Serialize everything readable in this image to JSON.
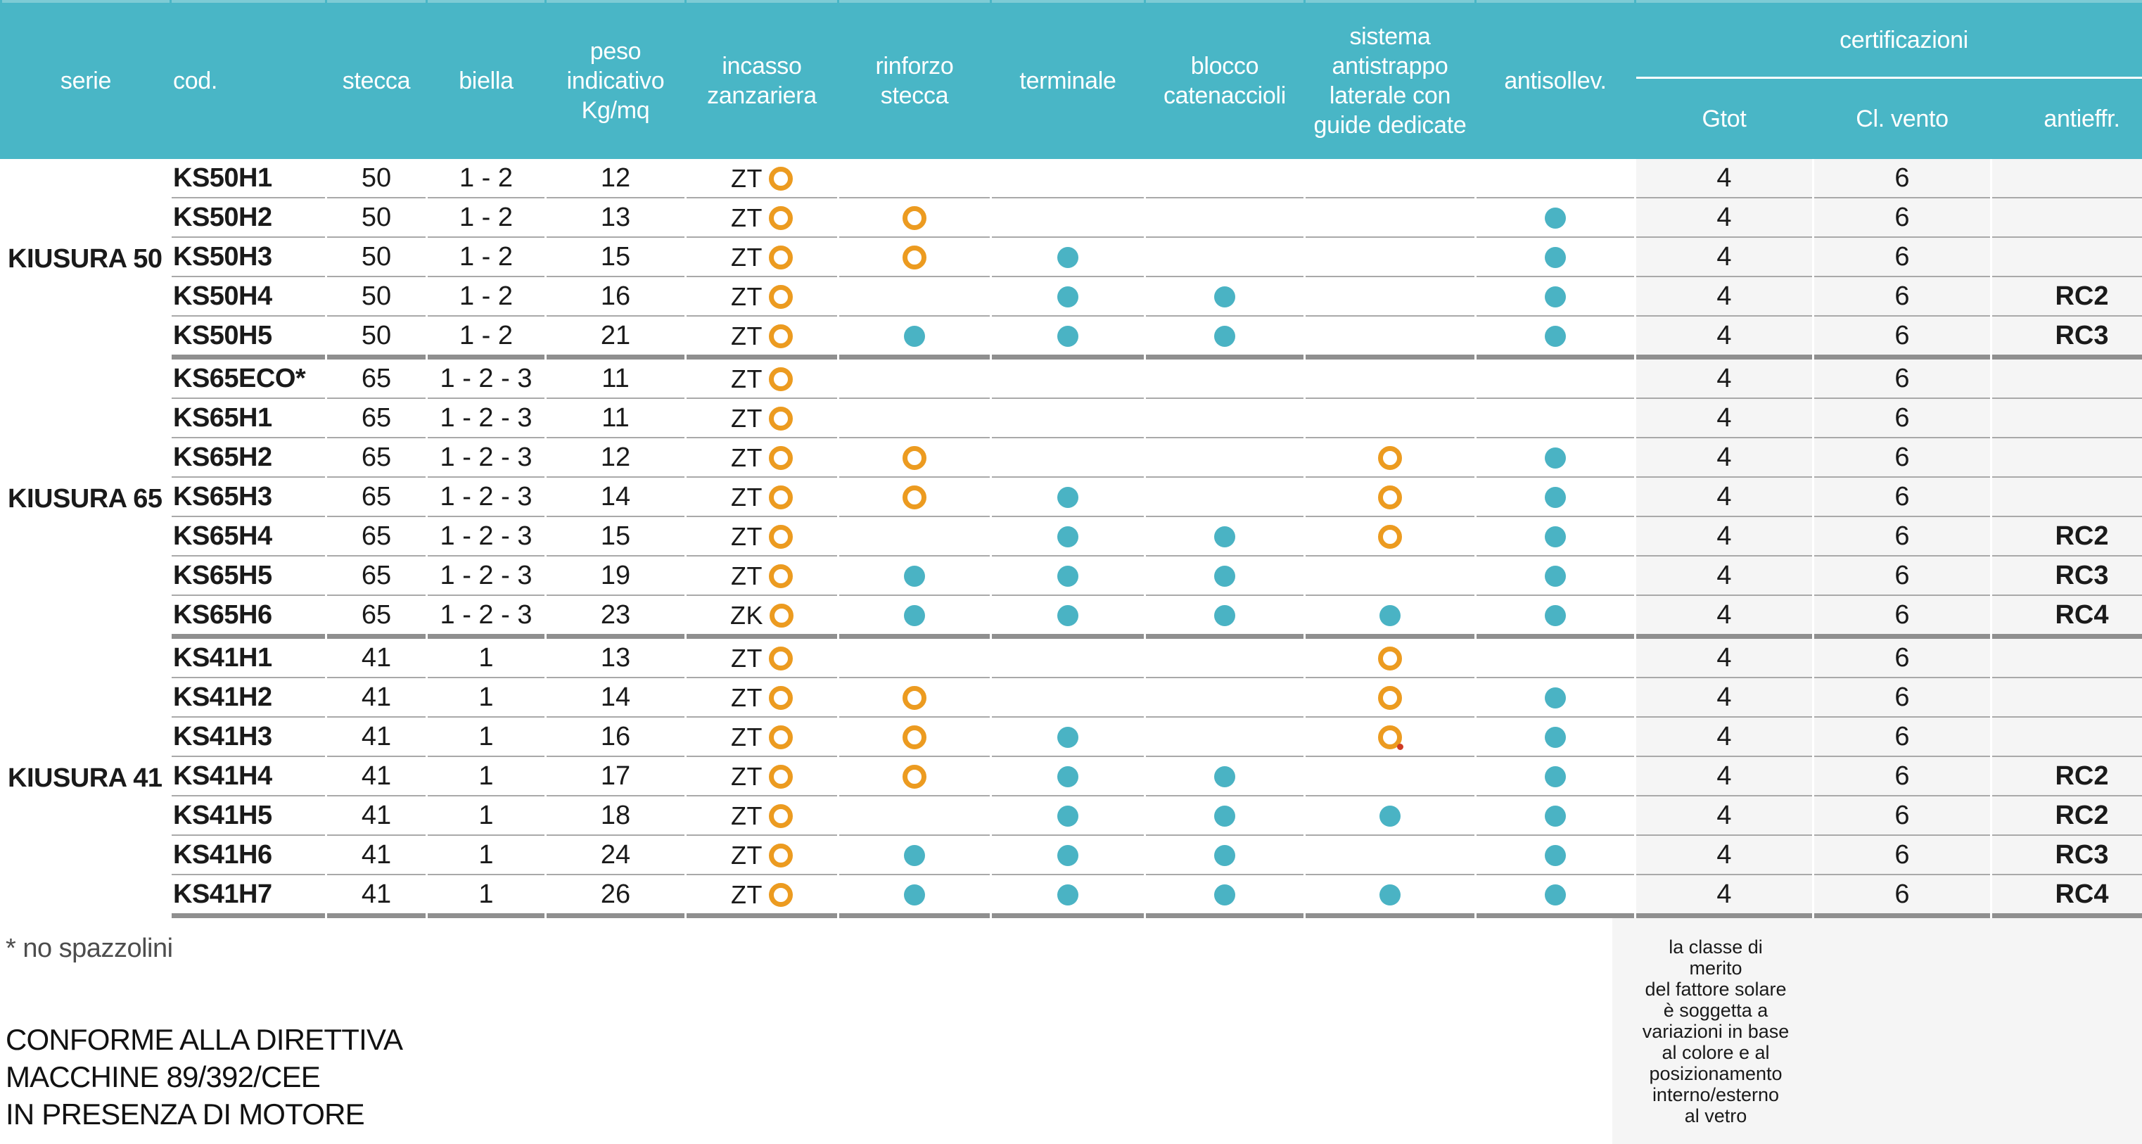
{
  "header": {
    "columns": [
      "serie",
      "cod.",
      "stecca",
      "biella",
      "peso\nindicativo\nKg/mq",
      "incasso\nzanzariera",
      "rinforzo\nstecca",
      "terminale",
      "blocco\ncatenaccioli",
      "sistema\nantistrappo\nlaterale con\nguide dedicate",
      "antisollev."
    ],
    "cert_group_label": "certificazioni",
    "cert_columns": [
      "Gtot",
      "Cl. vento",
      "antieffr."
    ]
  },
  "colors": {
    "header_teal": "#49B6C6",
    "feature_dot_teal": "#4AB3C4",
    "optional_ring_orange": "#EC9B20",
    "cert_column_bg": "#F5F5F5"
  },
  "groups": [
    {
      "serie": "KIUSURA 50",
      "rows": [
        {
          "cod": "KS50H1",
          "stecca": "50",
          "biella": "1 - 2",
          "peso": "12",
          "zanzariera": "ZT",
          "rinforzo": "",
          "terminale": "",
          "blocco": "",
          "sistema": "",
          "antisollev": "",
          "gtot": "4",
          "vento": "6",
          "antieffr": ""
        },
        {
          "cod": "KS50H2",
          "stecca": "50",
          "biella": "1 - 2",
          "peso": "13",
          "zanzariera": "ZT",
          "rinforzo": "ring",
          "terminale": "",
          "blocco": "",
          "sistema": "",
          "antisollev": "dot",
          "gtot": "4",
          "vento": "6",
          "antieffr": ""
        },
        {
          "cod": "KS50H3",
          "stecca": "50",
          "biella": "1 - 2",
          "peso": "15",
          "zanzariera": "ZT",
          "rinforzo": "ring",
          "terminale": "dot",
          "blocco": "",
          "sistema": "",
          "antisollev": "dot",
          "gtot": "4",
          "vento": "6",
          "antieffr": ""
        },
        {
          "cod": "KS50H4",
          "stecca": "50",
          "biella": "1 - 2",
          "peso": "16",
          "zanzariera": "ZT",
          "rinforzo": "",
          "terminale": "dot",
          "blocco": "dot",
          "sistema": "",
          "antisollev": "dot",
          "gtot": "4",
          "vento": "6",
          "antieffr": "RC2"
        },
        {
          "cod": "KS50H5",
          "stecca": "50",
          "biella": "1 - 2",
          "peso": "21",
          "zanzariera": "ZT",
          "rinforzo": "dot",
          "terminale": "dot",
          "blocco": "dot",
          "sistema": "",
          "antisollev": "dot",
          "gtot": "4",
          "vento": "6",
          "antieffr": "RC3"
        }
      ]
    },
    {
      "serie": "KIUSURA 65",
      "rows": [
        {
          "cod": "KS65ECO*",
          "stecca": "65",
          "biella": "1 - 2 - 3",
          "peso": "11",
          "zanzariera": "ZT",
          "rinforzo": "",
          "terminale": "",
          "blocco": "",
          "sistema": "",
          "antisollev": "",
          "gtot": "4",
          "vento": "6",
          "antieffr": ""
        },
        {
          "cod": "KS65H1",
          "stecca": "65",
          "biella": "1 - 2 - 3",
          "peso": "11",
          "zanzariera": "ZT",
          "rinforzo": "",
          "terminale": "",
          "blocco": "",
          "sistema": "",
          "antisollev": "",
          "gtot": "4",
          "vento": "6",
          "antieffr": ""
        },
        {
          "cod": "KS65H2",
          "stecca": "65",
          "biella": "1 - 2 - 3",
          "peso": "12",
          "zanzariera": "ZT",
          "rinforzo": "ring",
          "terminale": "",
          "blocco": "",
          "sistema": "ring",
          "antisollev": "dot",
          "gtot": "4",
          "vento": "6",
          "antieffr": ""
        },
        {
          "cod": "KS65H3",
          "stecca": "65",
          "biella": "1 - 2 - 3",
          "peso": "14",
          "zanzariera": "ZT",
          "rinforzo": "ring",
          "terminale": "dot",
          "blocco": "",
          "sistema": "ring",
          "antisollev": "dot",
          "gtot": "4",
          "vento": "6",
          "antieffr": ""
        },
        {
          "cod": "KS65H4",
          "stecca": "65",
          "biella": "1 - 2 - 3",
          "peso": "15",
          "zanzariera": "ZT",
          "rinforzo": "",
          "terminale": "dot",
          "blocco": "dot",
          "sistema": "ring",
          "antisollev": "dot",
          "gtot": "4",
          "vento": "6",
          "antieffr": "RC2"
        },
        {
          "cod": "KS65H5",
          "stecca": "65",
          "biella": "1 - 2 - 3",
          "peso": "19",
          "zanzariera": "ZT",
          "rinforzo": "dot",
          "terminale": "dot",
          "blocco": "dot",
          "sistema": "",
          "antisollev": "dot",
          "gtot": "4",
          "vento": "6",
          "antieffr": "RC3"
        },
        {
          "cod": "KS65H6",
          "stecca": "65",
          "biella": "1 - 2 - 3",
          "peso": "23",
          "zanzariera": "ZK",
          "rinforzo": "dot",
          "terminale": "dot",
          "blocco": "dot",
          "sistema": "dot",
          "antisollev": "dot",
          "gtot": "4",
          "vento": "6",
          "antieffr": "RC4"
        }
      ]
    },
    {
      "serie": "KIUSURA 41",
      "rows": [
        {
          "cod": "KS41H1",
          "stecca": "41",
          "biella": "1",
          "peso": "13",
          "zanzariera": "ZT",
          "rinforzo": "",
          "terminale": "",
          "blocco": "",
          "sistema": "ring",
          "antisollev": "",
          "gtot": "4",
          "vento": "6",
          "antieffr": ""
        },
        {
          "cod": "KS41H2",
          "stecca": "41",
          "biella": "1",
          "peso": "14",
          "zanzariera": "ZT",
          "rinforzo": "ring",
          "terminale": "",
          "blocco": "",
          "sistema": "ring",
          "antisollev": "dot",
          "gtot": "4",
          "vento": "6",
          "antieffr": ""
        },
        {
          "cod": "KS41H3",
          "stecca": "41",
          "biella": "1",
          "peso": "16",
          "zanzariera": "ZT",
          "rinforzo": "ring",
          "terminale": "dot",
          "blocco": "",
          "sistema": "ring-red",
          "antisollev": "dot",
          "gtot": "4",
          "vento": "6",
          "antieffr": ""
        },
        {
          "cod": "KS41H4",
          "stecca": "41",
          "biella": "1",
          "peso": "17",
          "zanzariera": "ZT",
          "rinforzo": "ring",
          "terminale": "dot",
          "blocco": "dot",
          "sistema": "",
          "antisollev": "dot",
          "gtot": "4",
          "vento": "6",
          "antieffr": "RC2"
        },
        {
          "cod": "KS41H5",
          "stecca": "41",
          "biella": "1",
          "peso": "18",
          "zanzariera": "ZT",
          "rinforzo": "",
          "terminale": "dot",
          "blocco": "dot",
          "sistema": "dot",
          "antisollev": "dot",
          "gtot": "4",
          "vento": "6",
          "antieffr": "RC2"
        },
        {
          "cod": "KS41H6",
          "stecca": "41",
          "biella": "1",
          "peso": "24",
          "zanzariera": "ZT",
          "rinforzo": "dot",
          "terminale": "dot",
          "blocco": "dot",
          "sistema": "",
          "antisollev": "dot",
          "gtot": "4",
          "vento": "6",
          "antieffr": "RC3"
        },
        {
          "cod": "KS41H7",
          "stecca": "41",
          "biella": "1",
          "peso": "26",
          "zanzariera": "ZT",
          "rinforzo": "dot",
          "terminale": "dot",
          "blocco": "dot",
          "sistema": "dot",
          "antisollev": "dot",
          "gtot": "4",
          "vento": "6",
          "antieffr": "RC4"
        }
      ]
    }
  ],
  "footer": {
    "footnote": "* no spazzolini",
    "directive": "CONFORME ALLA DIRETTIVA\nMACCHINE 89/392/CEE\nIN PRESENZA DI MOTORE",
    "solar_note": "la classe di\nmerito\ndel fattore solare\nè soggetta a\nvariazioni in base\nal colore e al\nposizionamento\ninterno/esterno\nal vetro"
  }
}
